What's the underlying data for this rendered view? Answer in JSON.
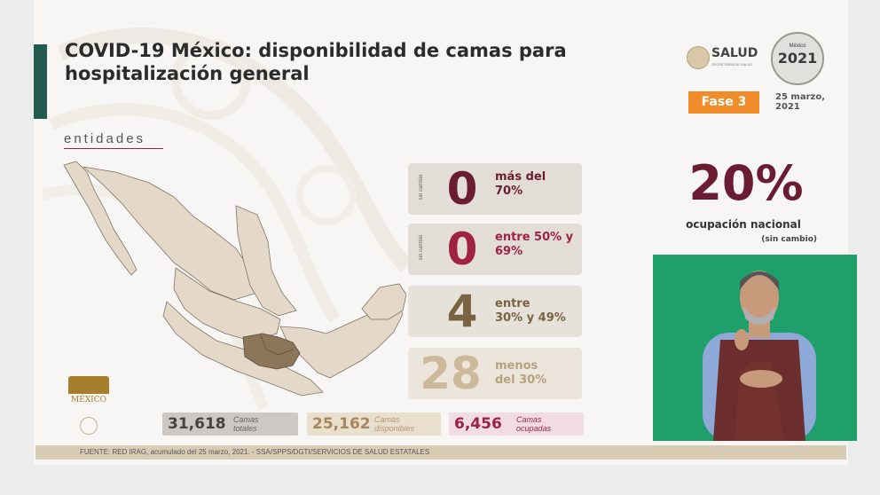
{
  "header": {
    "title_line1": "COVID-19 México: disponibilidad de camas para",
    "title_line2": "hospitalización general",
    "logo_salud": "SALUD",
    "logo_salud_sub": "SECRETARÍA DE SALUD",
    "logo_2021_top": "México",
    "logo_2021_year": "2021",
    "phase": "Fase 3",
    "date_line1": "25 marzo,",
    "date_line2": "2021"
  },
  "map": {
    "label": "entidades",
    "highlight_color": "#8b7659",
    "base_color": "#e4d9c8"
  },
  "ranges": [
    {
      "side": "sin cambio",
      "count": "0",
      "label_line1": "más del",
      "label_line2": "70%",
      "color": "#691c32"
    },
    {
      "side": "sin cambio",
      "count": "0",
      "label_line1": "entre 50% y",
      "label_line2": "69%",
      "color": "#9f2241"
    },
    {
      "side": "",
      "count": "4",
      "label_line1": "entre",
      "label_line2": "30% y 49%",
      "color": "#7a6340"
    },
    {
      "side": "",
      "count": "28",
      "label_line1": "menos",
      "label_line2": "del 30%",
      "color": "#cbb99a"
    }
  ],
  "national": {
    "percent": "20%",
    "label": "ocupación nacional",
    "change": "(sin cambio)"
  },
  "totals": [
    {
      "value": "31,618",
      "label_line1": "Camas",
      "label_line2": "totales"
    },
    {
      "value": "25,162",
      "label_line1": "Camas",
      "label_line2": "disponibles"
    },
    {
      "value": "6,456",
      "label_line1": "Camas",
      "label_line2": "ocupadas"
    }
  ],
  "footer": "FUENTE: RED IRAG, acumulado del 25 marzo, 2021.  -  SSA/SPPS/DGTI/SERVICIOS DE SALUD ESTATALES",
  "logo_gobierno": "MÉXICO"
}
